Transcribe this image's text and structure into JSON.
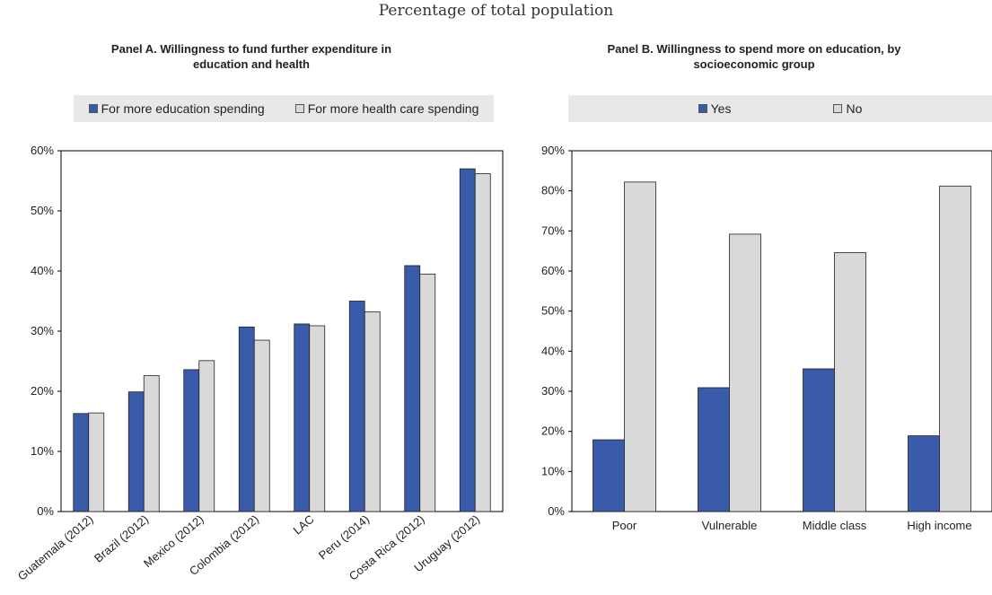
{
  "subtitle": "Percentage of total population",
  "chart_data": [
    {
      "type": "bar",
      "title": "Panel A. Willingness to fund further expenditure in education and health",
      "title_lines": [
        "Panel A. Willingness to fund further expenditure in",
        "education and health"
      ],
      "categories": [
        "Guatemala (2012)",
        "Brazil (2012)",
        "Mexico (2012)",
        "Colombia (2012)",
        "LAC",
        "Peru (2014)",
        "Costa Rica (2012)",
        "Uruguay (2012)"
      ],
      "series": [
        {
          "name": "For more education spending",
          "values": [
            16.3,
            19.9,
            23.6,
            30.7,
            31.2,
            35.0,
            40.9,
            57.0
          ],
          "color": "#3a5ba9"
        },
        {
          "name": "For more health care spending",
          "values": [
            16.4,
            22.6,
            25.1,
            28.5,
            30.9,
            33.2,
            39.5,
            56.2
          ],
          "color": "#d9d9d9"
        }
      ],
      "y_ticks": [
        "0%",
        "10%",
        "20%",
        "30%",
        "40%",
        "50%",
        "60%"
      ],
      "ylim": [
        0,
        60
      ],
      "grid": false,
      "legend_position": "top"
    },
    {
      "type": "bar",
      "title": "Panel B. Willingness to spend more on education, by socioeconomic group",
      "title_lines": [
        "Panel B. Willingness to spend more on education, by",
        "socioeconomic group"
      ],
      "categories": [
        "Poor",
        "Vulnerable",
        "Middle class",
        "High income"
      ],
      "series": [
        {
          "name": "Yes",
          "values": [
            17.9,
            30.9,
            35.6,
            18.9
          ],
          "color": "#3a5ba9"
        },
        {
          "name": "No",
          "values": [
            82.2,
            69.2,
            64.6,
            81.2
          ],
          "color": "#d9d9d9"
        }
      ],
      "y_ticks": [
        "0%",
        "10%",
        "20%",
        "30%",
        "40%",
        "50%",
        "60%",
        "70%",
        "80%",
        "90%"
      ],
      "ylim": [
        0,
        90
      ],
      "grid": false,
      "legend_position": "top"
    }
  ]
}
